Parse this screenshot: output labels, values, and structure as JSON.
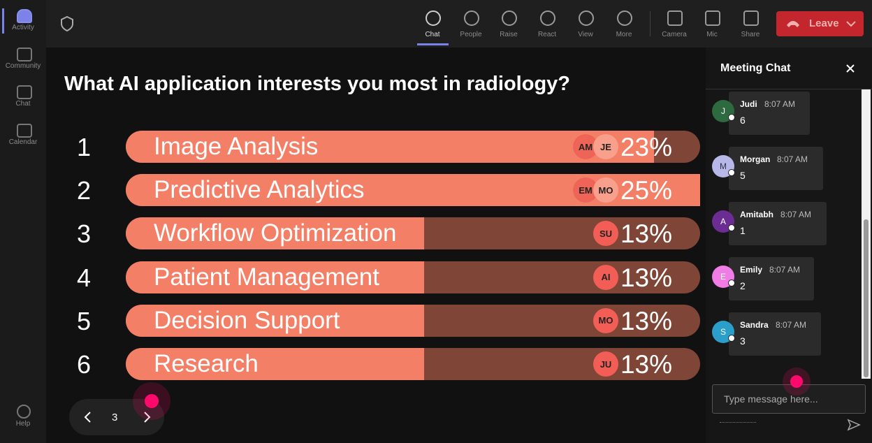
{
  "sidebar": {
    "items": [
      "Activity",
      "Community",
      "Chat",
      "Calendar"
    ],
    "help": "Help"
  },
  "toolbar": {
    "buttons": [
      "Chat",
      "People",
      "Raise",
      "React",
      "View",
      "More",
      "Camera",
      "Mic",
      "Share"
    ],
    "leave": "Leave"
  },
  "poll": {
    "question": "What AI application interests you most in radiology?",
    "options": [
      {
        "rank": 1,
        "label": "Image Analysis",
        "voters": [
          "AM",
          "JE"
        ],
        "percent": 23,
        "percent_label": "23%"
      },
      {
        "rank": 2,
        "label": "Predictive Analytics",
        "voters": [
          "EM",
          "MO"
        ],
        "percent": 25,
        "percent_label": "25%"
      },
      {
        "rank": 3,
        "label": "Workflow Optimization",
        "voters": [
          "SU"
        ],
        "percent": 13,
        "percent_label": "13%"
      },
      {
        "rank": 4,
        "label": "Patient Management",
        "voters": [
          "AI"
        ],
        "percent": 13,
        "percent_label": "13%"
      },
      {
        "rank": 5,
        "label": "Decision Support",
        "voters": [
          "MO"
        ],
        "percent": 13,
        "percent_label": "13%"
      },
      {
        "rank": 6,
        "label": "Research",
        "voters": [
          "JU"
        ],
        "percent": 13,
        "percent_label": "13%"
      }
    ]
  },
  "pager": {
    "page": 3
  },
  "chat": {
    "title": "Meeting Chat",
    "messages": [
      {
        "initial": "J",
        "name": "Judi",
        "time": "8:07 AM",
        "text": "6",
        "avatar_color": "#2d6a3f"
      },
      {
        "initial": "M",
        "name": "Morgan",
        "time": "8:07 AM",
        "text": "5",
        "avatar_color": "#b7b7e8"
      },
      {
        "initial": "A",
        "name": "Amitabh",
        "time": "8:07 AM",
        "text": "1",
        "avatar_color": "#6b2c93"
      },
      {
        "initial": "E",
        "name": "Emily",
        "time": "8:07 AM",
        "text": "2",
        "avatar_color": "#f07de6"
      },
      {
        "initial": "S",
        "name": "Sandra",
        "time": "8:07 AM",
        "text": "3",
        "avatar_color": "#2a9fc9"
      }
    ],
    "input_placeholder": "Type message here..."
  }
}
